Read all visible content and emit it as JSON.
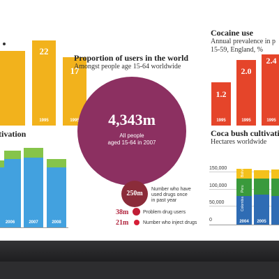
{
  "colors": {
    "yellow": "#f2b21c",
    "blue": "#42a1df",
    "green": "#86c44a",
    "orange_red": "#e5452a",
    "purple": "#8c3061",
    "maroon": "#8b2c3a",
    "red": "#d61e37",
    "coca_blue": "#2f6cb4",
    "coca_green": "#3a9a3c",
    "coca_yellow": "#f4c11c"
  },
  "left_top": {
    "values_text": [
      "22",
      "17"
    ],
    "years": [
      "1995",
      "1995"
    ]
  },
  "left_bottom": {
    "title_fragment": "tivation",
    "years": [
      "2006",
      "2007",
      "2008"
    ]
  },
  "center": {
    "title": "Proportion of users in the world",
    "subtitle": "Amongst people age 15-64 worldwide",
    "big_value": "4,343m",
    "big_caption_1": "All people",
    "big_caption_2": "aged 15-64 in 2007",
    "mid_value": "250m",
    "mid_caption_1": "Number who have",
    "mid_caption_2": "used drugs once",
    "mid_caption_3": "in past year",
    "small1_value": "38m",
    "small1_caption": "Problem drug users",
    "small2_value": "21m",
    "small2_caption": "Number who inject drugs"
  },
  "cocaine": {
    "title": "Cocaine use",
    "subtitle_1": "Annual prevalence in p",
    "subtitle_2": "15-59, England, %",
    "years": [
      "1995",
      "1995",
      "1995",
      "1995"
    ]
  },
  "coca": {
    "title": "Coca bush cultivatio",
    "subtitle": "Hectares worldwide",
    "series_labels": [
      "Colombia",
      "Peru",
      "Bolivia"
    ],
    "years": [
      "2004",
      "2005",
      ""
    ]
  },
  "chart_data": [
    {
      "type": "bar",
      "values": [
        22,
        17
      ],
      "categories": [
        "1995",
        "1995"
      ]
    },
    {
      "type": "bar",
      "title": "Cocaine use",
      "subtitle": "Annual prevalence in p 15-59, England, %",
      "categories": [
        "1995",
        "1995",
        "1995",
        "1995"
      ],
      "values": [
        1.2,
        2.0,
        2.4,
        null
      ]
    },
    {
      "type": "bar",
      "title": "Coca bush cultivatio",
      "subtitle": "Hectares worldwide",
      "categories": [
        "2004",
        "2005",
        ""
      ],
      "ylim": [
        0,
        150000
      ],
      "yticks": [
        0,
        50000,
        100000,
        150000
      ],
      "ytick_labels": [
        "0",
        "50,000",
        "100,000",
        "150,000"
      ],
      "series": [
        {
          "name": "Colombia",
          "values": [
            80000,
            86000,
            78000
          ]
        },
        {
          "name": "Peru",
          "values": [
            50000,
            48000,
            51000
          ]
        },
        {
          "name": "Bolivia",
          "values": [
            28000,
            25000,
            27000
          ]
        }
      ]
    },
    {
      "type": "bar",
      "categories": [
        "",
        "",
        "2006",
        "2007",
        "2008"
      ],
      "series": [
        {
          "name": "",
          "values": [
            60,
            65,
            70,
            80,
            70
          ]
        },
        {
          "name": "",
          "values": [
            8,
            10,
            9,
            10,
            8
          ]
        }
      ]
    }
  ]
}
